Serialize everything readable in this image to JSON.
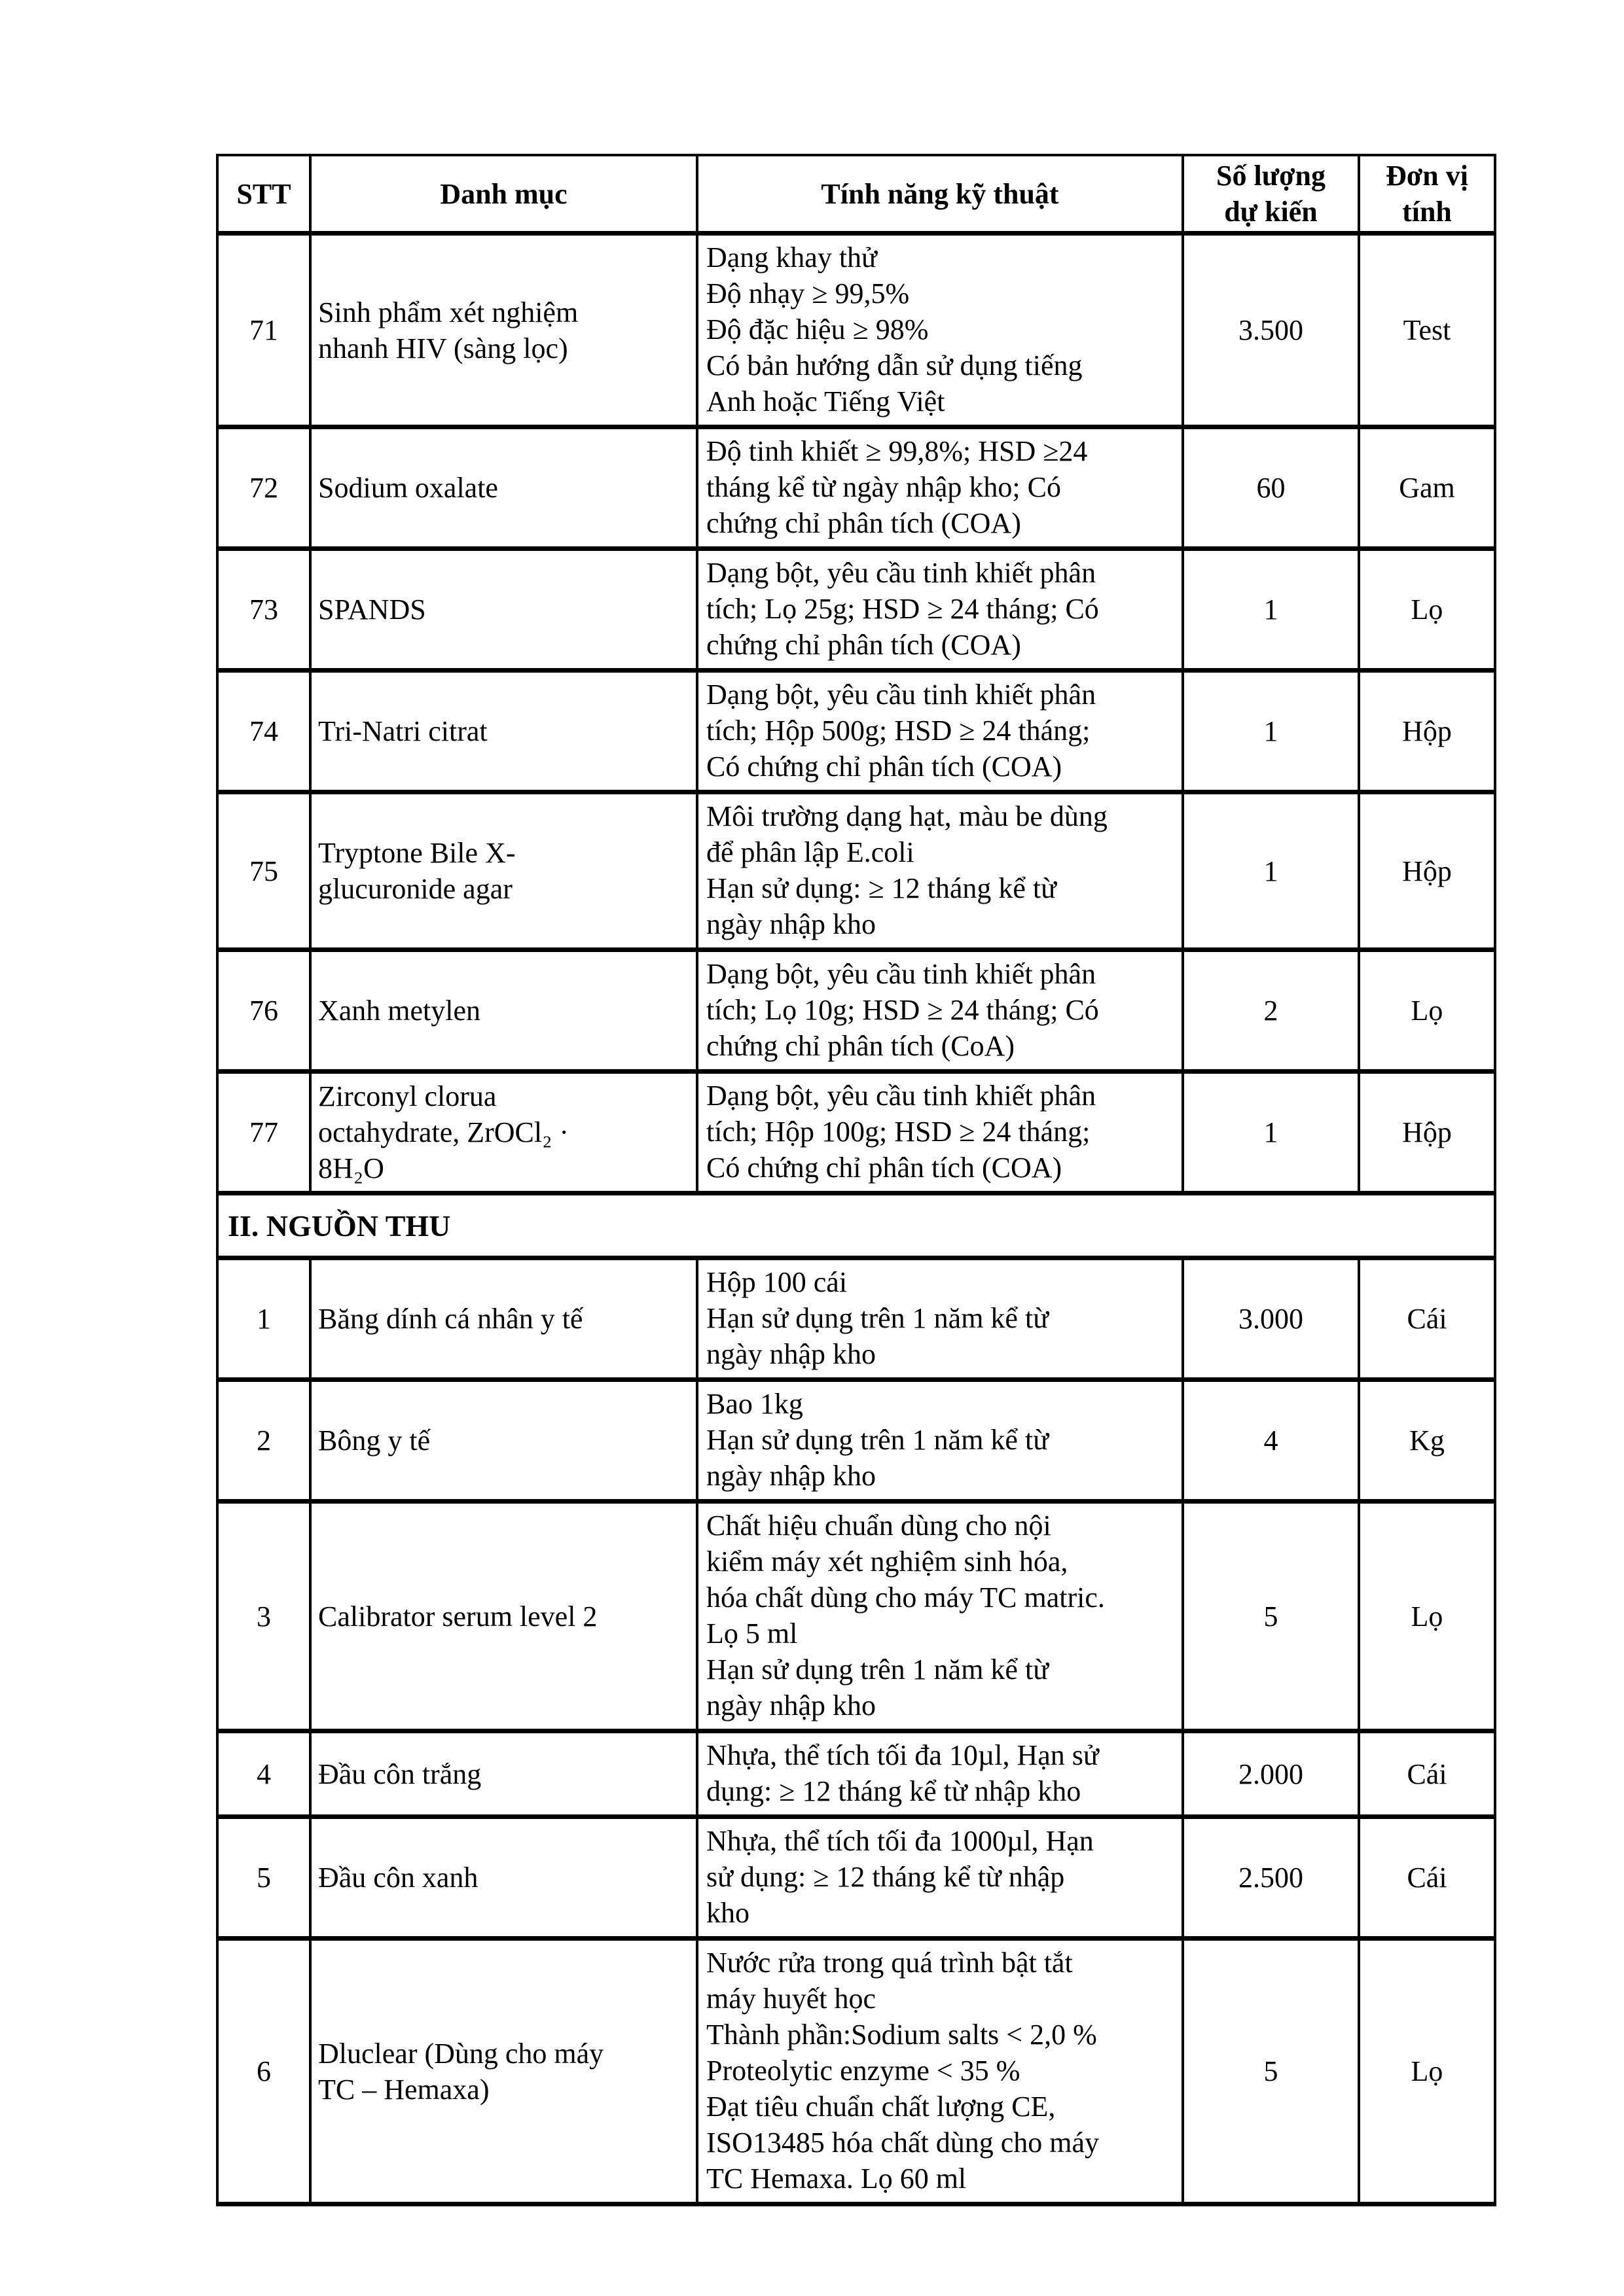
{
  "document": {
    "columns": [
      {
        "id": "stt",
        "lines": [
          "STT"
        ]
      },
      {
        "id": "danh-muc",
        "lines": [
          "Danh mục"
        ]
      },
      {
        "id": "tinh-nang",
        "lines": [
          "Tính năng kỹ thuật"
        ]
      },
      {
        "id": "so-luong",
        "lines": [
          "Số lượng",
          "dự kiến"
        ]
      },
      {
        "id": "don-vi",
        "lines": [
          "Đơn vị",
          "tính"
        ]
      }
    ],
    "rows": [
      {
        "type": "item",
        "stt": "71",
        "name_lines": [
          "Sinh phẩm xét nghiệm",
          "nhanh HIV (sàng lọc)"
        ],
        "spec_lines": [
          "Dạng khay thử",
          "Độ nhạy  ≥ 99,5%",
          "Độ đặc hiệu ≥ 98%",
          "Có bản hướng dẫn sử dụng tiếng",
          "Anh hoặc Tiếng Việt"
        ],
        "qty": "3.500",
        "unit": "Test"
      },
      {
        "type": "item",
        "stt": "72",
        "name_lines": [
          "Sodium oxalate"
        ],
        "spec_lines": [
          "Độ tinh khiết ≥ 99,8%; HSD ≥24",
          "tháng kể từ ngày nhập kho; Có",
          "chứng chỉ phân tích (COA)"
        ],
        "qty": "60",
        "unit": "Gam"
      },
      {
        "type": "item",
        "stt": "73",
        "name_lines": [
          "SPANDS"
        ],
        "spec_lines": [
          "Dạng bột, yêu cầu tinh khiết phân",
          "tích; Lọ 25g; HSD ≥ 24 tháng; Có",
          "chứng chỉ phân tích (COA)"
        ],
        "qty": "1",
        "unit": "Lọ"
      },
      {
        "type": "item",
        "stt": "74",
        "name_lines": [
          "Tri-Natri citrat"
        ],
        "spec_lines": [
          "Dạng bột, yêu cầu tinh khiết phân",
          "tích; Hộp 500g; HSD ≥ 24 tháng;",
          "Có chứng chỉ phân tích (COA)"
        ],
        "qty": "1",
        "unit": "Hộp"
      },
      {
        "type": "item",
        "stt": "75",
        "name_lines": [
          "Tryptone Bile X-",
          "glucuronide agar"
        ],
        "spec_lines": [
          "Môi trường dạng hạt, màu be dùng",
          "để phân lập E.coli",
          "Hạn sử dụng: ≥ 12 tháng kể từ",
          "ngày nhập kho"
        ],
        "qty": "1",
        "unit": "Hộp"
      },
      {
        "type": "item",
        "stt": "76",
        "name_lines": [
          "Xanh metylen"
        ],
        "spec_lines": [
          "Dạng bột, yêu cầu tinh khiết phân",
          "tích; Lọ 10g; HSD ≥ 24 tháng; Có",
          "chứng chỉ phân tích (CoA)"
        ],
        "qty": "2",
        "unit": "Lọ"
      },
      {
        "type": "item",
        "stt": "77",
        "name_lines": [
          "Zirconyl clorua",
          "octahydrate, ZrOCl₂ ·",
          "8H₂O"
        ],
        "spec_lines": [
          "Dạng bột, yêu cầu tinh khiết phân",
          "tích; Hộp 100g; HSD ≥ 24 tháng;",
          "Có chứng chỉ phân tích (COA)"
        ],
        "qty": "1",
        "unit": "Hộp"
      },
      {
        "type": "section",
        "label": "II. NGUỒN THU"
      },
      {
        "type": "item",
        "stt": "1",
        "name_lines": [
          "Băng dính cá nhân y tế"
        ],
        "spec_lines": [
          "Hộp 100 cái",
          "Hạn sử dụng trên 1 năm kể từ",
          "ngày nhập kho"
        ],
        "qty": "3.000",
        "unit": "Cái"
      },
      {
        "type": "item",
        "stt": "2",
        "name_lines": [
          "Bông y tế"
        ],
        "spec_lines": [
          "Bao 1kg",
          "Hạn sử dụng trên 1 năm kể từ",
          "ngày nhập kho"
        ],
        "qty": "4",
        "unit": "Kg"
      },
      {
        "type": "item",
        "stt": "3",
        "name_lines": [
          "Calibrator serum level 2"
        ],
        "spec_lines": [
          "Chất hiệu chuẩn dùng cho nội",
          "kiểm  máy xét nghiệm sinh hóa,",
          "hóa chất dùng cho máy TC matric.",
          "Lọ 5 ml",
          "Hạn sử dụng trên 1 năm kể từ",
          "ngày nhập kho"
        ],
        "qty": "5",
        "unit": "Lọ"
      },
      {
        "type": "item",
        "stt": "4",
        "name_lines": [
          "Đầu côn trắng"
        ],
        "spec_lines": [
          "Nhựa, thể tích tối đa 10µl, Hạn sử",
          "dụng: ≥ 12 tháng kể từ nhập kho"
        ],
        "qty": "2.000",
        "unit": "Cái"
      },
      {
        "type": "item",
        "stt": "5",
        "name_lines": [
          "Đầu côn xanh"
        ],
        "spec_lines": [
          "Nhựa, thể tích tối đa 1000µl, Hạn",
          "sử dụng: ≥ 12 tháng kể từ nhập",
          "kho"
        ],
        "qty": "2.500",
        "unit": "Cái"
      },
      {
        "type": "item",
        "stt": "6",
        "name_lines": [
          "Dluclear (Dùng cho máy",
          "TC – Hemaxa)"
        ],
        "spec_lines": [
          "Nước rửa trong quá trình bật tắt",
          "máy huyết học",
          "Thành phần:Sodium salts < 2,0 %",
          "Proteolytic enzyme < 35 %",
          "Đạt tiêu chuẩn chất lượng CE,",
          "ISO13485 hóa chất dùng cho máy",
          "TC Hemaxa. Lọ 60 ml"
        ],
        "qty": "5",
        "unit": "Lọ"
      }
    ]
  }
}
